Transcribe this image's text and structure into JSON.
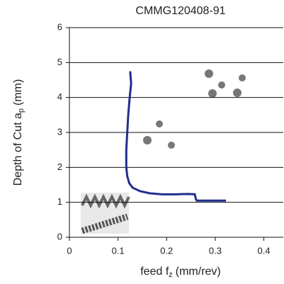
{
  "chart_data": {
    "type": "line",
    "title": "CMMG120408-91",
    "xlabel": {
      "text": "feed f",
      "sub": "z",
      "unit": "(mm/rev)"
    },
    "ylabel": {
      "text": "Depth of Cut a",
      "sub": "p",
      "unit": "(mm)"
    },
    "xlim": [
      0,
      0.44
    ],
    "ylim": [
      0,
      6
    ],
    "xticks": [
      0,
      0.1,
      0.2,
      0.3,
      0.4
    ],
    "yticks": [
      0,
      1,
      2,
      3,
      4,
      5,
      6
    ],
    "grid": true,
    "series": [
      {
        "color": "#1f2f8f",
        "x": [
          0.125,
          0.127,
          0.124,
          0.121,
          0.119,
          0.117,
          0.117,
          0.119,
          0.123,
          0.13,
          0.145,
          0.165,
          0.19,
          0.22,
          0.245,
          0.258,
          0.26,
          0.262,
          0.322
        ],
        "values": [
          4.75,
          4.4,
          4,
          3.5,
          3,
          2.5,
          2,
          1.75,
          1.55,
          1.42,
          1.32,
          1.26,
          1.23,
          1.23,
          1.24,
          1.23,
          1.1,
          1.05,
          1.05
        ]
      }
    ]
  }
}
